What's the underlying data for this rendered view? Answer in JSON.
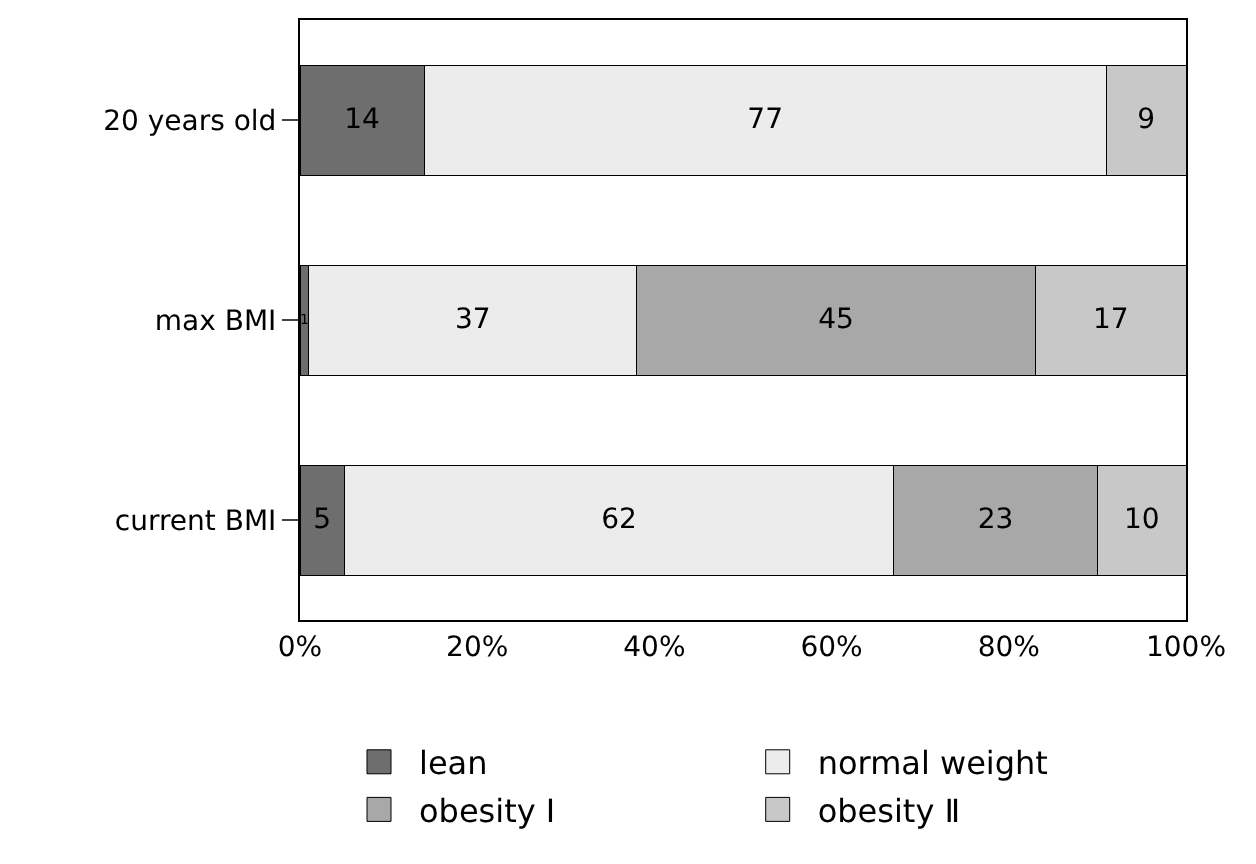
{
  "chart_data": {
    "type": "bar",
    "orientation": "horizontal",
    "stacked": true,
    "categories": [
      "20 years old",
      "max BMI",
      "current BMI"
    ],
    "series": [
      {
        "name": "lean",
        "color": "#6e6e6e",
        "values": [
          14,
          1,
          5
        ],
        "value_labels": [
          "14",
          "1",
          "5"
        ]
      },
      {
        "name": "normal weight",
        "color": "#ececec",
        "values": [
          77,
          37,
          62
        ],
        "value_labels": [
          "77",
          "37",
          "62"
        ]
      },
      {
        "name": "obesity Ⅰ",
        "color": "#a8a8a8",
        "values": [
          0,
          45,
          23
        ],
        "value_labels": [
          null,
          "45",
          "23"
        ]
      },
      {
        "name": "obesity Ⅱ",
        "color": "#c8c8c8",
        "values": [
          9,
          17,
          10
        ],
        "value_labels": [
          "9",
          "17",
          "10"
        ]
      }
    ],
    "xlim": [
      0,
      100
    ],
    "xticks": [
      {
        "value": 0,
        "label": "0%"
      },
      {
        "value": 20,
        "label": "20%"
      },
      {
        "value": 40,
        "label": "40%"
      },
      {
        "value": 60,
        "label": "60%"
      },
      {
        "value": 80,
        "label": "80%"
      },
      {
        "value": 100,
        "label": "100%"
      }
    ],
    "legend": "bottom"
  }
}
